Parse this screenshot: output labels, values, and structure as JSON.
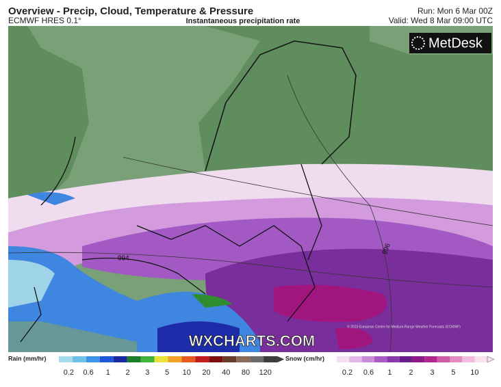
{
  "header": {
    "title": "Overview - Precip, Cloud, Temperature & Pressure",
    "model": "ECMWF HRES 0.1°",
    "field": "Instantaneous precipitation rate",
    "run": "Run: Mon 6 Mar 00Z",
    "valid": "Valid: Wed 8 Mar 09:00 UTC"
  },
  "map": {
    "logo": "MetDesk",
    "watermark": "WXCHARTS.COM",
    "copyright": "© 2023 European Centre for Medium-Range Weather Forecasts (ECMWF)",
    "isobars": [
      "994",
      "996"
    ]
  },
  "legend": {
    "rain": {
      "label": "Rain (mm/hr)",
      "ticks": [
        "0.2",
        "0.6",
        "1",
        "2",
        "3",
        "5",
        "10",
        "20",
        "40",
        "80",
        "120"
      ]
    },
    "snow": {
      "label": "Snow (cm/hr)",
      "ticks": [
        "0.2",
        "0.6",
        "1",
        "2",
        "3",
        "5",
        "10"
      ]
    }
  }
}
